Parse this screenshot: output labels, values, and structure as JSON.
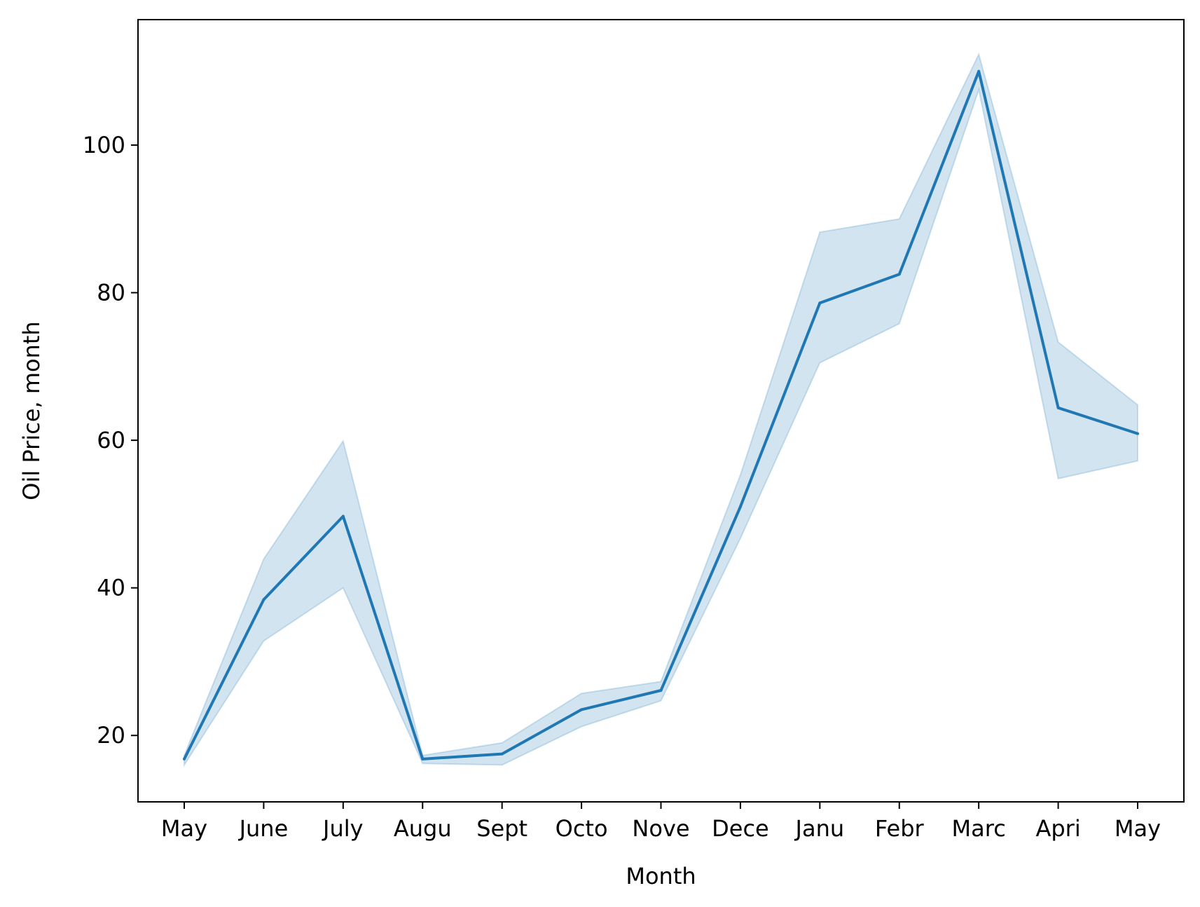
{
  "chart_data": {
    "type": "line",
    "categories": [
      "May",
      "June",
      "July",
      "Augu",
      "Sept",
      "Octo",
      "Nove",
      "Dece",
      "Janu",
      "Febr",
      "Marc",
      "Apri",
      "May"
    ],
    "series": [
      {
        "values": [
          16.8,
          38.4,
          49.7,
          16.8,
          17.5,
          23.5,
          26.1,
          51.0,
          78.6,
          82.5,
          110.0,
          64.4,
          60.9
        ],
        "ci_lower": [
          16.0,
          32.8,
          40.0,
          16.2,
          16.0,
          21.2,
          24.7,
          46.7,
          70.5,
          75.8,
          107.5,
          54.8,
          57.2
        ],
        "ci_upper": [
          17.3,
          43.9,
          59.9,
          17.3,
          19.0,
          25.7,
          27.3,
          55.3,
          88.2,
          90.0,
          112.3,
          73.3,
          64.8
        ]
      }
    ],
    "xlabel": "Month",
    "ylabel": "Oil Price, month",
    "ylim": [
      11,
      117
    ],
    "yticks": [
      20,
      40,
      60,
      80,
      100
    ],
    "legend": "none",
    "grid": false,
    "line_color": "#1f77b4",
    "band_color": "#1f77b4"
  }
}
